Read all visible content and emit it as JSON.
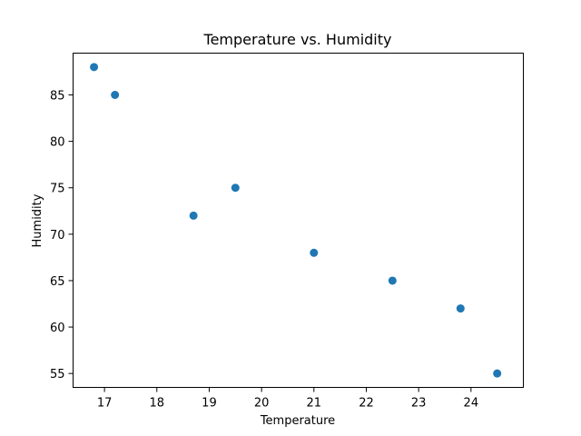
{
  "chart_data": {
    "type": "scatter",
    "title": "Temperature vs. Humidity",
    "xlabel": "Temperature",
    "ylabel": "Humidity",
    "x": [
      16.8,
      17.2,
      18.7,
      19.5,
      21.0,
      22.5,
      23.8,
      24.5
    ],
    "y": [
      88,
      85,
      72,
      75,
      68,
      65,
      62,
      55
    ],
    "xlim": [
      16.4,
      25.0
    ],
    "ylim": [
      53.5,
      89.5
    ],
    "xticks": [
      17,
      18,
      19,
      20,
      21,
      22,
      23,
      24
    ],
    "yticks": [
      55,
      60,
      65,
      70,
      75,
      80,
      85
    ],
    "grid": false,
    "marker_color": "#1f77b4"
  }
}
